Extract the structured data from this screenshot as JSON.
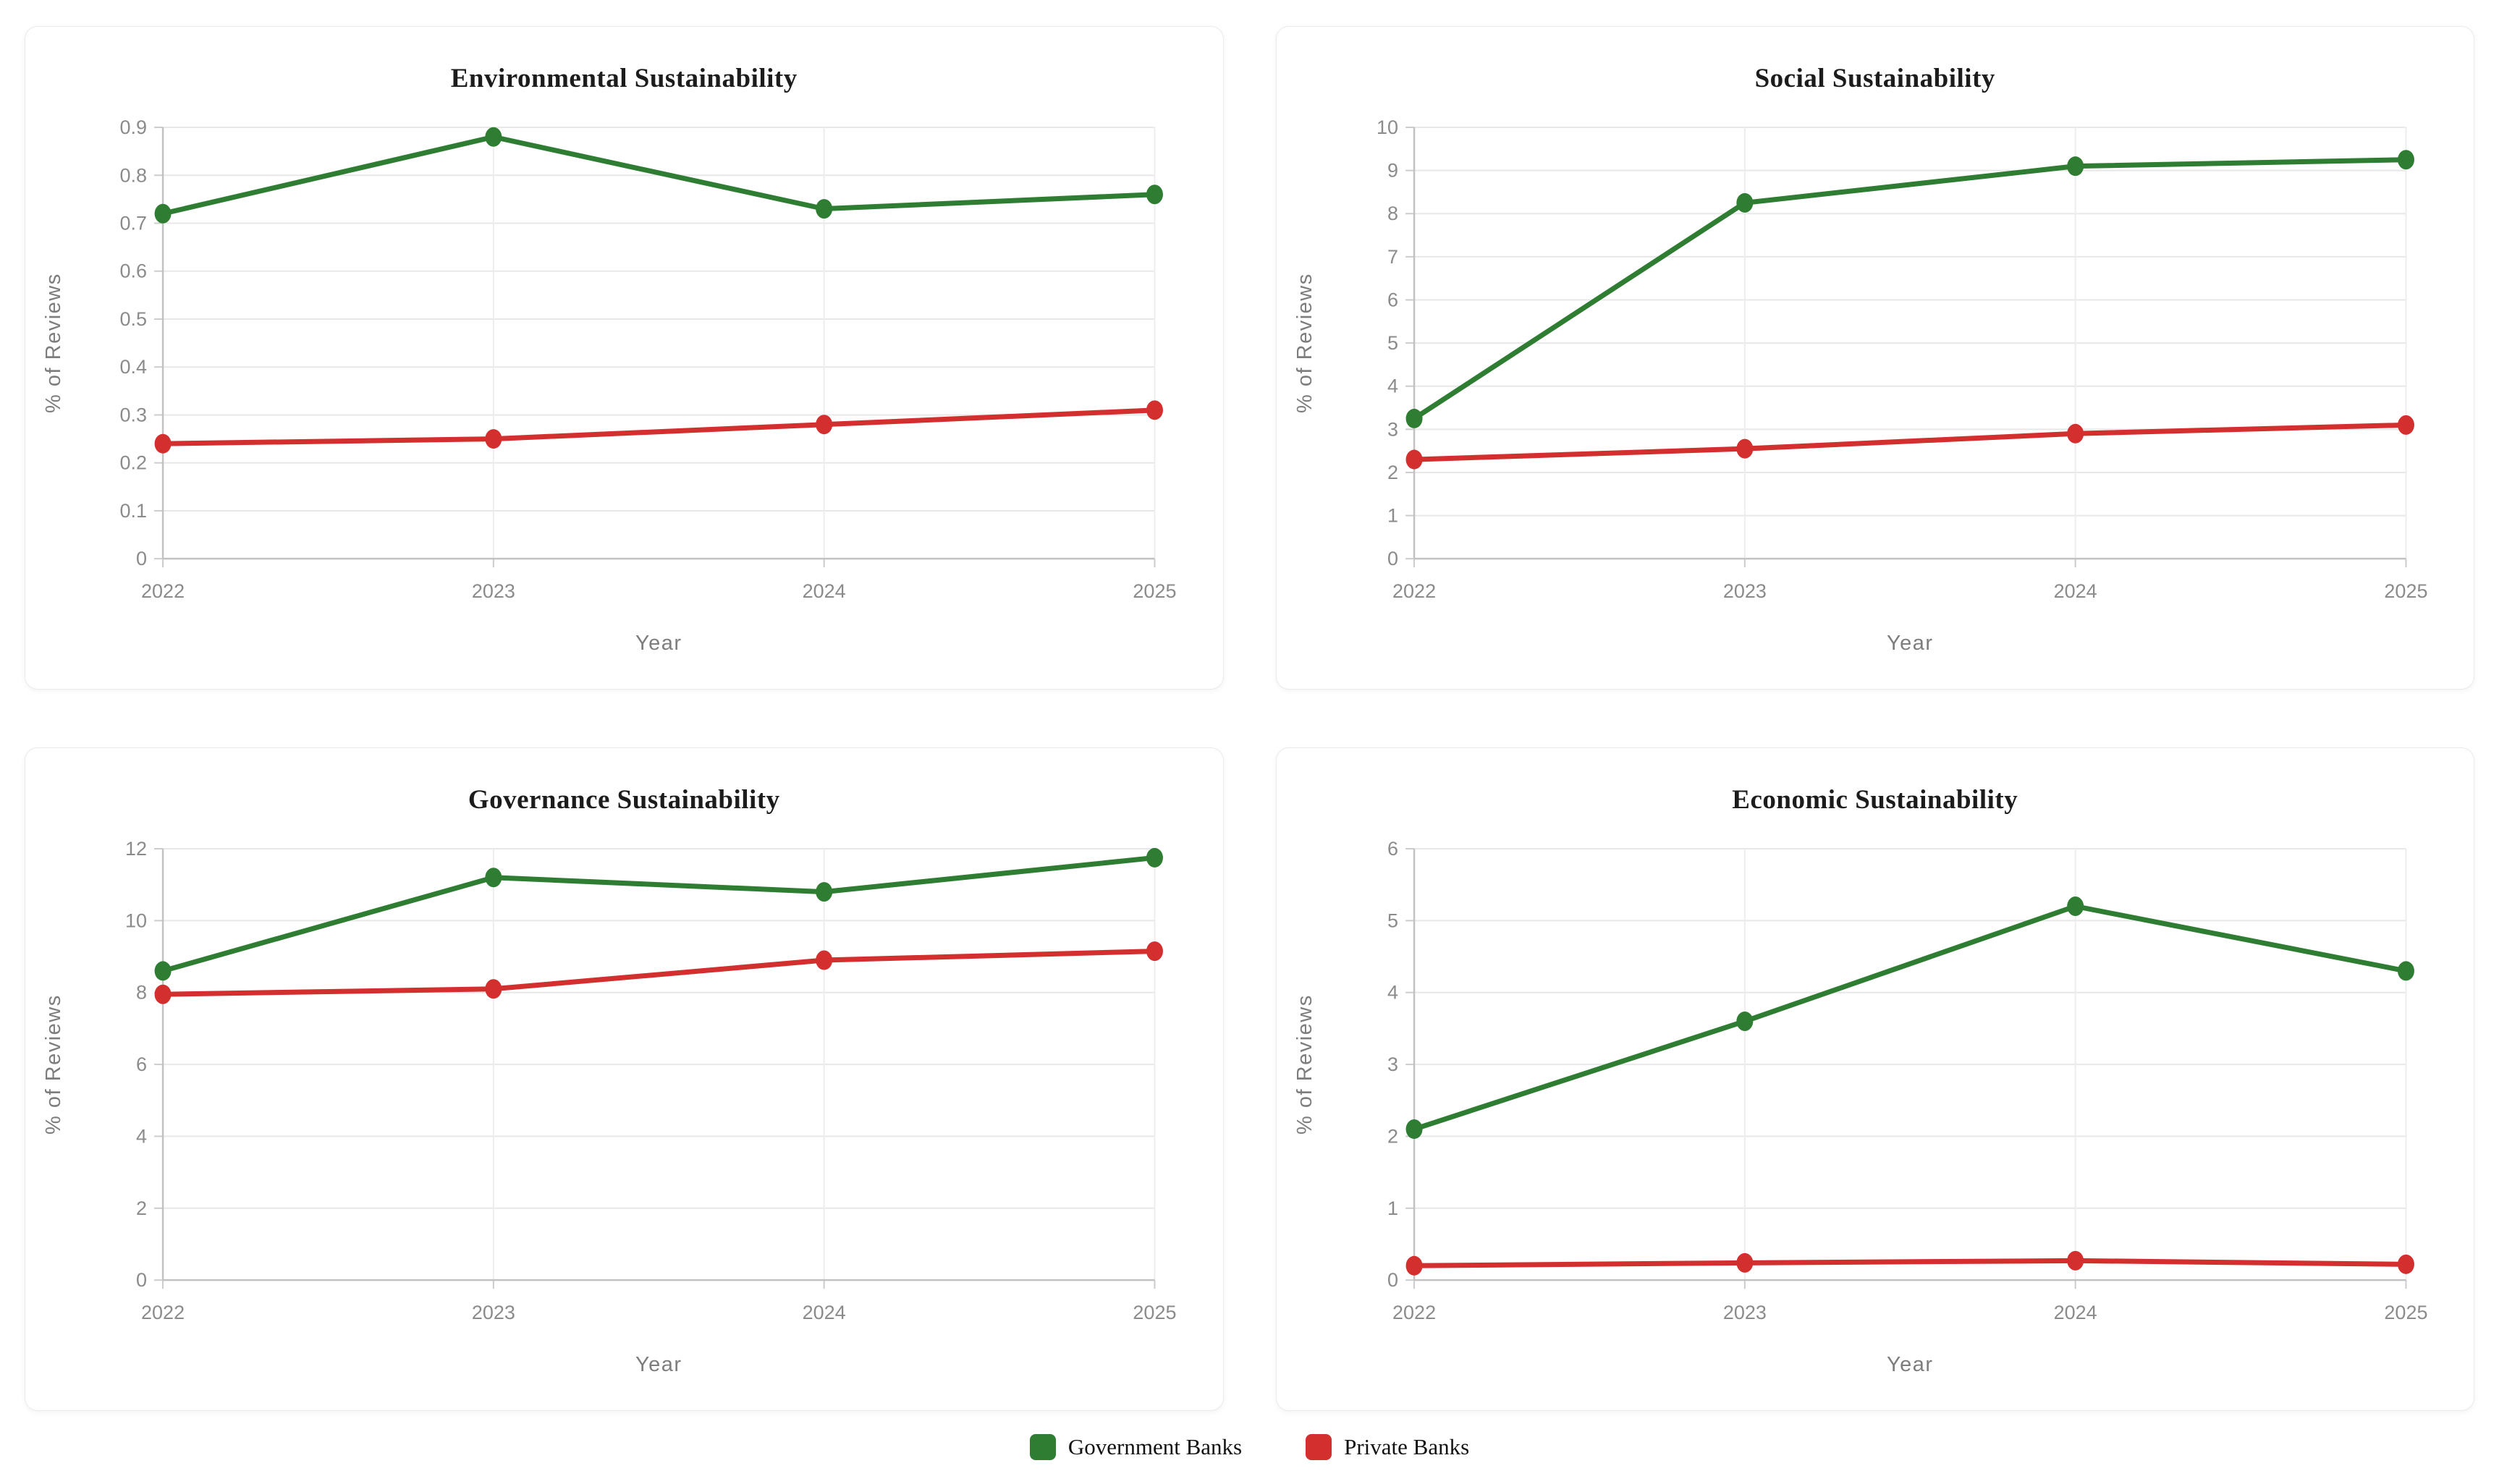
{
  "legend": {
    "items": [
      {
        "label": "Government Banks",
        "color": "#2e7d32"
      },
      {
        "label": "Private Banks",
        "color": "#d32f2f"
      }
    ]
  },
  "chart_data": [
    {
      "type": "line",
      "title": "Environmental Sustainability",
      "xlabel": "Year",
      "ylabel": "% of Reviews",
      "categories": [
        "2022",
        "2023",
        "2024",
        "2025"
      ],
      "ylim": [
        0,
        0.9
      ],
      "ytick_step": 0.1,
      "grid": true,
      "legend_position": "bottom-shared",
      "series": [
        {
          "name": "Government Banks",
          "color": "#2e7d32",
          "values": [
            0.72,
            0.88,
            0.73,
            0.76
          ]
        },
        {
          "name": "Private Banks",
          "color": "#d32f2f",
          "values": [
            0.24,
            0.25,
            0.28,
            0.31
          ]
        }
      ]
    },
    {
      "type": "line",
      "title": "Social Sustainability",
      "xlabel": "Year",
      "ylabel": "% of Reviews",
      "categories": [
        "2022",
        "2023",
        "2024",
        "2025"
      ],
      "ylim": [
        0,
        10
      ],
      "ytick_step": 1,
      "grid": true,
      "legend_position": "bottom-shared",
      "series": [
        {
          "name": "Government Banks",
          "color": "#2e7d32",
          "values": [
            3.25,
            8.25,
            9.1,
            9.25
          ]
        },
        {
          "name": "Private Banks",
          "color": "#d32f2f",
          "values": [
            2.3,
            2.55,
            2.9,
            3.1
          ]
        }
      ]
    },
    {
      "type": "line",
      "title": "Governance Sustainability",
      "xlabel": "Year",
      "ylabel": "% of Reviews",
      "categories": [
        "2022",
        "2023",
        "2024",
        "2025"
      ],
      "ylim": [
        0,
        12
      ],
      "ytick_step": 2,
      "grid": true,
      "legend_position": "bottom-shared",
      "series": [
        {
          "name": "Government Banks",
          "color": "#2e7d32",
          "values": [
            8.6,
            11.2,
            10.8,
            11.75
          ]
        },
        {
          "name": "Private Banks",
          "color": "#d32f2f",
          "values": [
            7.95,
            8.1,
            8.9,
            9.15
          ]
        }
      ]
    },
    {
      "type": "line",
      "title": "Economic Sustainability",
      "xlabel": "Year",
      "ylabel": "% of Reviews",
      "categories": [
        "2022",
        "2023",
        "2024",
        "2025"
      ],
      "ylim": [
        0,
        6
      ],
      "ytick_step": 1,
      "grid": true,
      "legend_position": "bottom-shared",
      "series": [
        {
          "name": "Government Banks",
          "color": "#2e7d32",
          "values": [
            2.1,
            3.6,
            5.2,
            4.3
          ]
        },
        {
          "name": "Private Banks",
          "color": "#d32f2f",
          "values": [
            0.2,
            0.24,
            0.27,
            0.22
          ]
        }
      ]
    }
  ]
}
